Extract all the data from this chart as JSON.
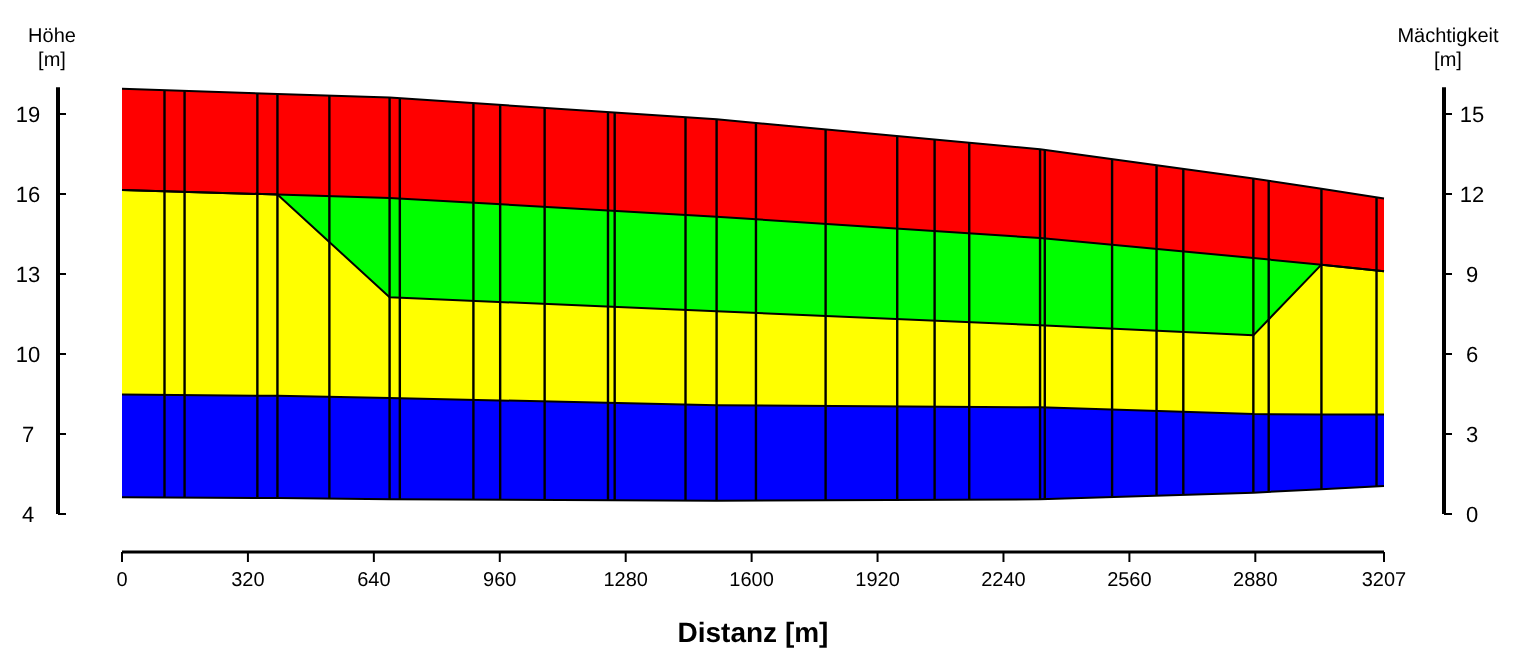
{
  "chart_data": {
    "type": "area",
    "stacked": true,
    "xlabel": "Distanz [m]",
    "ylabel": "Höhe [m]",
    "y2label": "Mächtigkeit [m]",
    "x": [
      0,
      395,
      680,
      1511,
      2333,
      2875,
      3048,
      3207
    ],
    "xlim": [
      0,
      3207
    ],
    "xticks": [
      0,
      320,
      640,
      960,
      1280,
      1600,
      1920,
      2240,
      2560,
      2880,
      3207
    ],
    "ylim": [
      4,
      20
    ],
    "yticks": [
      4,
      7,
      10,
      13,
      16,
      19
    ],
    "y2lim": [
      0,
      16
    ],
    "y2ticks": [
      0,
      3,
      6,
      9,
      12,
      15
    ],
    "series": [
      {
        "axis": "y2",
        "color": "#ffffff",
        "values": [
          0.63,
          0.6,
          0.55,
          0.5,
          0.55,
          0.8,
          0.93,
          1.05
        ]
      },
      {
        "axis": "y2",
        "color": "#0000ff",
        "values": [
          3.85,
          3.83,
          3.8,
          3.58,
          3.45,
          2.95,
          2.8,
          2.68
        ]
      },
      {
        "axis": "y2",
        "color": "#ffff00",
        "values": [
          7.67,
          7.55,
          3.78,
          3.52,
          3.08,
          2.95,
          5.62,
          5.37
        ]
      },
      {
        "axis": "y2",
        "color": "#00ff00",
        "values": [
          0,
          0,
          3.72,
          3.55,
          3.27,
          2.9,
          0,
          0
        ]
      },
      {
        "axis": "y2",
        "color": "#ff0000",
        "values": [
          3.8,
          3.77,
          3.77,
          3.65,
          3.33,
          2.98,
          2.85,
          2.73
        ]
      }
    ],
    "ref_lines": [
      {
        "axis": "x",
        "value": 108,
        "color": "#000000"
      },
      {
        "axis": "x",
        "value": 159,
        "color": "#000000"
      },
      {
        "axis": "x",
        "value": 344,
        "color": "#000000"
      },
      {
        "axis": "x",
        "value": 395,
        "color": "#000000"
      },
      {
        "axis": "x",
        "value": 527,
        "color": "#000000"
      },
      {
        "axis": "x",
        "value": 680,
        "color": "#000000"
      },
      {
        "axis": "x",
        "value": 706,
        "color": "#000000"
      },
      {
        "axis": "x",
        "value": 893,
        "color": "#000000"
      },
      {
        "axis": "x",
        "value": 961,
        "color": "#000000"
      },
      {
        "axis": "x",
        "value": 1074,
        "color": "#000000"
      },
      {
        "axis": "x",
        "value": 1235,
        "color": "#000000"
      },
      {
        "axis": "x",
        "value": 1252,
        "color": "#000000"
      },
      {
        "axis": "x",
        "value": 1432,
        "color": "#000000"
      },
      {
        "axis": "x",
        "value": 1511,
        "color": "#000000"
      },
      {
        "axis": "x",
        "value": 1611,
        "color": "#000000"
      },
      {
        "axis": "x",
        "value": 1788,
        "color": "#000000"
      },
      {
        "axis": "x",
        "value": 1970,
        "color": "#000000"
      },
      {
        "axis": "x",
        "value": 2065,
        "color": "#000000"
      },
      {
        "axis": "x",
        "value": 2153,
        "color": "#000000"
      },
      {
        "axis": "x",
        "value": 2333,
        "color": "#000000"
      },
      {
        "axis": "x",
        "value": 2345,
        "color": "#000000"
      },
      {
        "axis": "x",
        "value": 2516,
        "color": "#000000"
      },
      {
        "axis": "x",
        "value": 2629,
        "color": "#000000"
      },
      {
        "axis": "x",
        "value": 2697,
        "color": "#000000"
      },
      {
        "axis": "x",
        "value": 2875,
        "color": "#000000"
      },
      {
        "axis": "x",
        "value": 2914,
        "color": "#000000"
      },
      {
        "axis": "x",
        "value": 3048,
        "color": "#000000"
      },
      {
        "axis": "x",
        "value": 3188,
        "color": "#000000"
      }
    ]
  }
}
